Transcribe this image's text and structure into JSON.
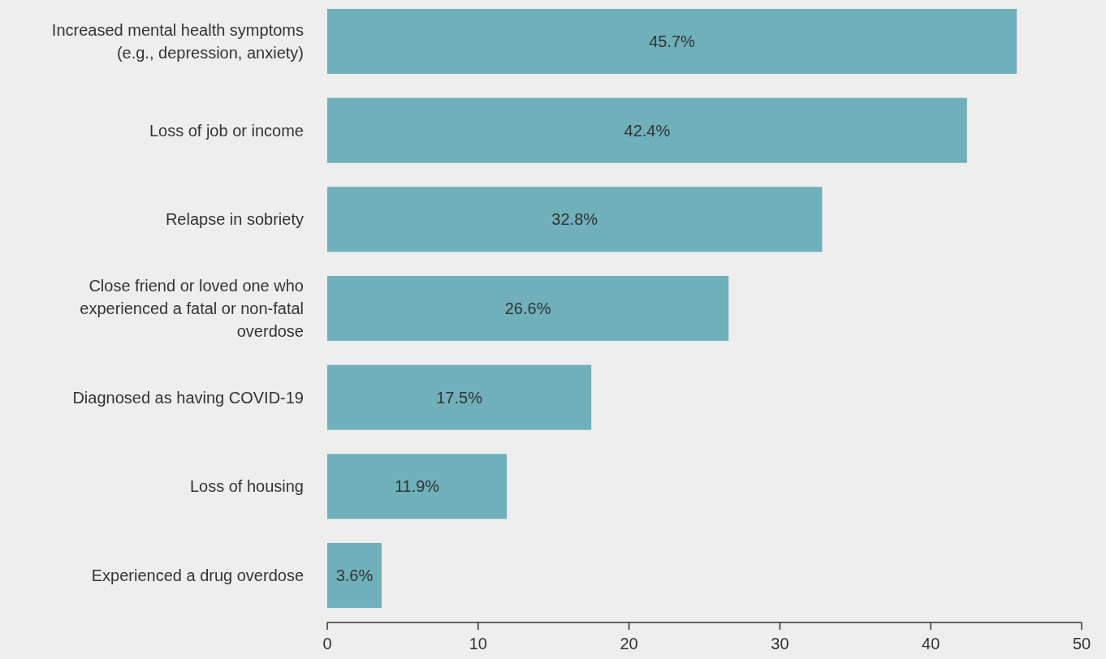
{
  "chart_data": {
    "type": "bar",
    "orientation": "horizontal",
    "categories": [
      "Increased mental health symptoms (e.g., depression, anxiety)",
      "Loss of job or income",
      "Relapse in sobriety",
      "Close friend or loved one who experienced a fatal or non-fatal overdose",
      "Diagnosed as having COVID-19",
      "Loss of housing",
      "Experienced a drug overdose"
    ],
    "values": [
      45.7,
      42.4,
      32.8,
      26.6,
      17.5,
      11.9,
      3.6
    ],
    "value_labels": [
      "45.7%",
      "42.4%",
      "32.8%",
      "26.6%",
      "17.5%",
      "11.9%",
      "3.6%"
    ],
    "color": "#6fb0ba",
    "xlim": [
      0,
      50
    ],
    "xticks": [
      0,
      10,
      20,
      30,
      40,
      50
    ],
    "grid": false
  }
}
